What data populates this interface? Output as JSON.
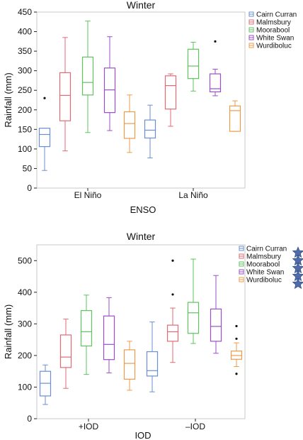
{
  "chart_data": [
    {
      "type": "box",
      "title": "Winter",
      "xlabel": "ENSO",
      "ylabel": "Rainfall (mm)",
      "ylim": [
        0,
        450
      ],
      "yticks": [
        0,
        50,
        100,
        150,
        200,
        250,
        300,
        350,
        400,
        450
      ],
      "categories": [
        "El Niño",
        "La Niño"
      ],
      "legend_position": "right",
      "series": [
        {
          "name": "Cairn Curran",
          "color": "#6a8fd3",
          "boxes": [
            {
              "min": 45,
              "q1": 106,
              "median": 137,
              "q3": 153,
              "max": 153,
              "outliers": [
                230
              ]
            },
            {
              "min": 77,
              "q1": 128,
              "median": 148,
              "q3": 174,
              "max": 212,
              "outliers": []
            }
          ]
        },
        {
          "name": "Malmsbury",
          "color": "#e06b74",
          "boxes": [
            {
              "min": 95,
              "q1": 172,
              "median": 237,
              "q3": 295,
              "max": 385,
              "outliers": []
            },
            {
              "min": 158,
              "q1": 202,
              "median": 262,
              "q3": 287,
              "max": 292,
              "outliers": []
            }
          ]
        },
        {
          "name": "Moorabool",
          "color": "#5ec45e",
          "boxes": [
            {
              "min": 142,
              "q1": 238,
              "median": 270,
              "q3": 335,
              "max": 427,
              "outliers": []
            },
            {
              "min": 248,
              "q1": 280,
              "median": 312,
              "q3": 355,
              "max": 373,
              "outliers": []
            }
          ]
        },
        {
          "name": "White Swan",
          "color": "#9a4fc8",
          "boxes": [
            {
              "min": 147,
              "q1": 193,
              "median": 251,
              "q3": 307,
              "max": 387,
              "outliers": []
            },
            {
              "min": 236,
              "q1": 246,
              "median": 254,
              "q3": 292,
              "max": 304,
              "outliers": [
                375
              ]
            }
          ]
        },
        {
          "name": "Wurdiboluc",
          "color": "#ee9b4a",
          "boxes": [
            {
              "min": 91,
              "q1": 127,
              "median": 165,
              "q3": 195,
              "max": 238,
              "outliers": []
            },
            {
              "min": 145,
              "q1": 145,
              "median": 198,
              "q3": 210,
              "max": 223,
              "outliers": []
            }
          ]
        }
      ]
    },
    {
      "type": "box",
      "title": "Winter",
      "xlabel": "IOD",
      "ylabel": "Rainfall (mm)",
      "ylim": [
        0,
        550
      ],
      "yticks": [
        0,
        100,
        200,
        300,
        400,
        500
      ],
      "categories": [
        "+IOD",
        "–IOD"
      ],
      "legend_position": "right",
      "series": [
        {
          "name": "Cairn Curran",
          "color": "#6a8fd3",
          "boxes": [
            {
              "min": 45,
              "q1": 72,
              "median": 112,
              "q3": 150,
              "max": 170,
              "outliers": []
            },
            {
              "min": 85,
              "q1": 135,
              "median": 152,
              "q3": 212,
              "max": 306,
              "outliers": []
            }
          ]
        },
        {
          "name": "Malmsbury",
          "color": "#e06b74",
          "boxes": [
            {
              "min": 96,
              "q1": 162,
              "median": 195,
              "q3": 265,
              "max": 315,
              "outliers": []
            },
            {
              "min": 178,
              "q1": 245,
              "median": 275,
              "q3": 296,
              "max": 350,
              "outliers": [
                500,
                393
              ]
            }
          ]
        },
        {
          "name": "Moorabool",
          "color": "#5ec45e",
          "boxes": [
            {
              "min": 140,
              "q1": 230,
              "median": 275,
              "q3": 342,
              "max": 391,
              "outliers": []
            },
            {
              "min": 238,
              "q1": 270,
              "median": 335,
              "q3": 368,
              "max": 505,
              "outliers": []
            }
          ]
        },
        {
          "name": "White Swan",
          "color": "#9a4fc8",
          "boxes": [
            {
              "min": 145,
              "q1": 187,
              "median": 235,
              "q3": 325,
              "max": 383,
              "outliers": []
            },
            {
              "min": 207,
              "q1": 245,
              "median": 292,
              "q3": 347,
              "max": 453,
              "outliers": []
            }
          ]
        },
        {
          "name": "Wurdiboluc",
          "color": "#ee9b4a",
          "boxes": [
            {
              "min": 90,
              "q1": 125,
              "median": 175,
              "q3": 218,
              "max": 245,
              "outliers": []
            },
            {
              "min": 165,
              "q1": 188,
              "median": 200,
              "q3": 214,
              "max": 240,
              "outliers": [
                293,
                253,
                142
              ]
            }
          ]
        }
      ]
    }
  ],
  "decoration": {
    "star_icon_color": "#4f6ba8",
    "star_count": 5
  }
}
